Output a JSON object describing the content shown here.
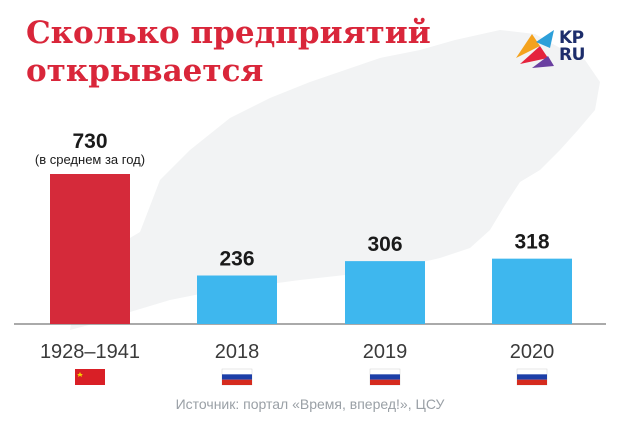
{
  "title": "Сколько предприятий открывается",
  "logo": {
    "text_line1": "KP",
    "text_line2": "RU"
  },
  "source": "Источник: портал «Время, вперед!», ЦСУ",
  "colors": {
    "title": "#d9263a",
    "bar_historic": "#d52a3a",
    "bar_modern": "#3eb7ee",
    "axis": "#8e8e8e"
  },
  "chart_data": {
    "type": "bar",
    "title": "Сколько предприятий открывается",
    "xlabel": "",
    "ylabel": "",
    "ylim": [
      0,
      730
    ],
    "grid": false,
    "categories": [
      "1928–1941",
      "2018",
      "2019",
      "2020"
    ],
    "values": [
      730,
      236,
      306,
      318
    ],
    "value_labels": [
      "730",
      "236",
      "306",
      "318"
    ],
    "value_notes": [
      "(в среднем за год)",
      "",
      "",
      ""
    ],
    "flags": [
      "ussr-flag-icon",
      "russia-flag-icon",
      "russia-flag-icon",
      "russia-flag-icon"
    ]
  }
}
